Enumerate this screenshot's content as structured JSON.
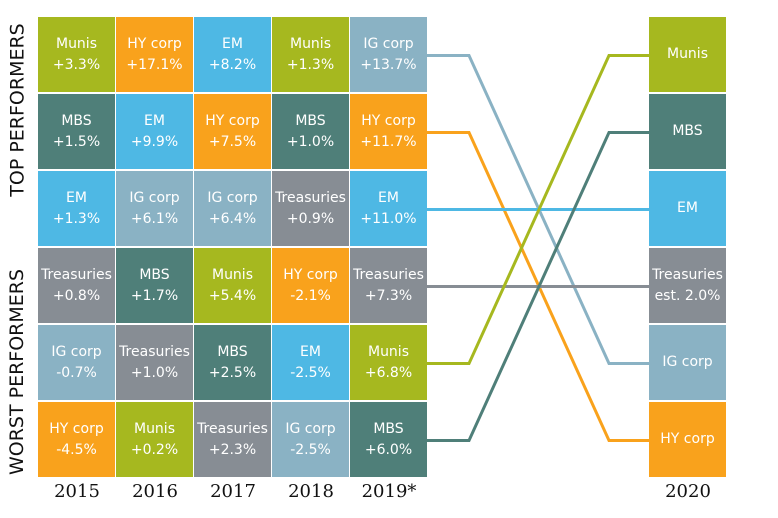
{
  "chart_data": {
    "type": "table",
    "side_labels": {
      "top": "TOP PERFORMERS",
      "bottom": "WORST PERFORMERS"
    },
    "colors": {
      "Munis": "#a6b81f",
      "HY corp": "#f9a21c",
      "EM": "#4eb8e4",
      "IG corp": "#8ab2c4",
      "MBS": "#4f7f79",
      "Treasuries": "#878d94"
    },
    "years": [
      {
        "label": "2015",
        "cells": [
          {
            "asset": "Munis",
            "value": "+3.3%"
          },
          {
            "asset": "MBS",
            "value": "+1.5%"
          },
          {
            "asset": "EM",
            "value": "+1.3%"
          },
          {
            "asset": "Treasuries",
            "value": "+0.8%"
          },
          {
            "asset": "IG corp",
            "value": "-0.7%"
          },
          {
            "asset": "HY corp",
            "value": "-4.5%"
          }
        ]
      },
      {
        "label": "2016",
        "cells": [
          {
            "asset": "HY corp",
            "value": "+17.1%"
          },
          {
            "asset": "EM",
            "value": "+9.9%"
          },
          {
            "asset": "IG corp",
            "value": "+6.1%"
          },
          {
            "asset": "MBS",
            "value": "+1.7%"
          },
          {
            "asset": "Treasuries",
            "value": "+1.0%"
          },
          {
            "asset": "Munis",
            "value": "+0.2%"
          }
        ]
      },
      {
        "label": "2017",
        "cells": [
          {
            "asset": "EM",
            "value": "+8.2%"
          },
          {
            "asset": "HY corp",
            "value": "+7.5%"
          },
          {
            "asset": "IG corp",
            "value": "+6.4%"
          },
          {
            "asset": "Munis",
            "value": "+5.4%"
          },
          {
            "asset": "MBS",
            "value": "+2.5%"
          },
          {
            "asset": "Treasuries",
            "value": "+2.3%"
          }
        ]
      },
      {
        "label": "2018",
        "cells": [
          {
            "asset": "Munis",
            "value": "+1.3%"
          },
          {
            "asset": "MBS",
            "value": "+1.0%"
          },
          {
            "asset": "Treasuries",
            "value": "+0.9%"
          },
          {
            "asset": "HY corp",
            "value": "-2.1%"
          },
          {
            "asset": "EM",
            "value": "-2.5%"
          },
          {
            "asset": "IG corp",
            "value": "-2.5%"
          }
        ]
      },
      {
        "label": "2019*",
        "cells": [
          {
            "asset": "IG corp",
            "value": "+13.7%"
          },
          {
            "asset": "HY corp",
            "value": "+11.7%"
          },
          {
            "asset": "EM",
            "value": "+11.0%"
          },
          {
            "asset": "Treasuries",
            "value": "+7.3%"
          },
          {
            "asset": "Munis",
            "value": "+6.8%"
          },
          {
            "asset": "MBS",
            "value": "+6.0%"
          }
        ]
      }
    ],
    "forecast": {
      "label": "2020",
      "cells": [
        {
          "asset": "Munis",
          "value": ""
        },
        {
          "asset": "MBS",
          "value": ""
        },
        {
          "asset": "EM",
          "value": ""
        },
        {
          "asset": "Treasuries",
          "value": "est. 2.0%"
        },
        {
          "asset": "IG corp",
          "value": ""
        },
        {
          "asset": "HY corp",
          "value": ""
        }
      ]
    }
  }
}
